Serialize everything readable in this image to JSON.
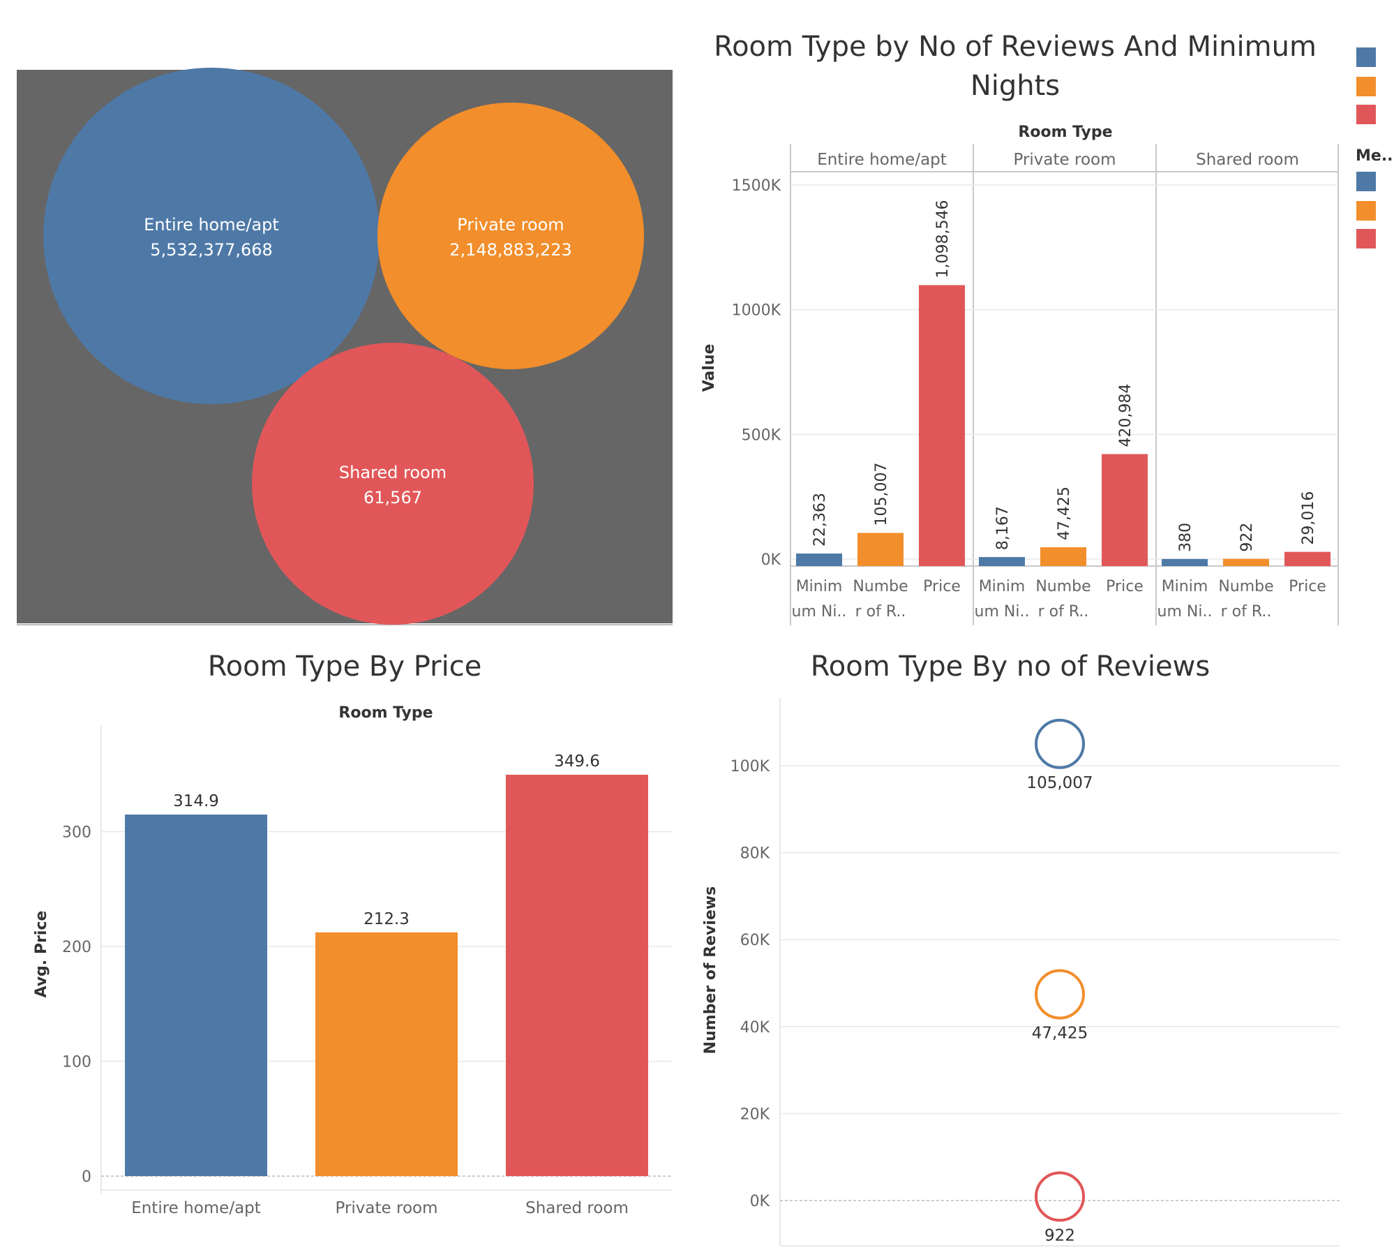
{
  "colors": {
    "entire": "#4e79a7",
    "private": "#f28e2b",
    "shared": "#e15759",
    "bubble_background": "#666666",
    "grid": "#e8e8e8",
    "panel_border": "#c8c8c8"
  },
  "chart_data": [
    {
      "type": "bubble",
      "background": "dark gray",
      "bubbles": [
        {
          "label": "Entire home/apt",
          "value": 5532377668,
          "value_label": "5,532,377,668",
          "color": "#4e79a7"
        },
        {
          "label": "Private room",
          "value": 2148883223,
          "value_label": "2,148,883,223",
          "color": "#f28e2b"
        },
        {
          "label": "Shared room",
          "value": 61567,
          "value_label": "61,567",
          "color": "#e15759"
        }
      ]
    },
    {
      "type": "bar",
      "title_line1": "Room Type by No of Reviews And Minimum",
      "title_line2": "Nights",
      "header_label": "Room Type",
      "ylabel": "Value",
      "ylim": [
        0,
        1500000
      ],
      "yticks": [
        {
          "value": 0,
          "label": "0K"
        },
        {
          "value": 500000,
          "label": "500K"
        },
        {
          "value": 1000000,
          "label": "1000K"
        },
        {
          "value": 1500000,
          "label": "1500K"
        }
      ],
      "measure_legend_title": "Me..",
      "measure_names": [
        {
          "line1": "Minim",
          "line2": "um Ni..",
          "color": "#4e79a7"
        },
        {
          "line1": "Numbe",
          "line2": "r of R..",
          "color": "#f28e2b"
        },
        {
          "line1": "Price",
          "line2": "",
          "color": "#e15759"
        }
      ],
      "panels": [
        {
          "name": "Entire home/apt",
          "values": [
            22363,
            105007,
            1098546
          ],
          "labels": [
            "22,363",
            "105,007",
            "1,098,546"
          ]
        },
        {
          "name": "Private room",
          "values": [
            8167,
            47425,
            420984
          ],
          "labels": [
            "8,167",
            "47,425",
            "420,984"
          ]
        },
        {
          "name": "Shared room",
          "values": [
            380,
            922,
            29016
          ],
          "labels": [
            "380",
            "922",
            "29,016"
          ]
        }
      ]
    },
    {
      "type": "bar",
      "title": "Room Type By Price",
      "header_label": "Room Type",
      "ylabel": "Avg. Price",
      "ylim": [
        0,
        380
      ],
      "yticks": [
        {
          "value": 0,
          "label": "0"
        },
        {
          "value": 100,
          "label": "100"
        },
        {
          "value": 200,
          "label": "200"
        },
        {
          "value": 300,
          "label": "300"
        }
      ],
      "categories": [
        "Entire home/apt",
        "Private room",
        "Shared room"
      ],
      "values": [
        314.9,
        212.3,
        349.6
      ],
      "labels": [
        "314.9",
        "212.3",
        "349.6"
      ],
      "colors": [
        "#4e79a7",
        "#f28e2b",
        "#e15759"
      ]
    },
    {
      "type": "scatter",
      "title": "Room Type By no of Reviews",
      "ylabel": "Number of Reviews",
      "ylim": [
        -10000,
        112000
      ],
      "yticks": [
        {
          "value": 0,
          "label": "0K"
        },
        {
          "value": 20000,
          "label": "20K"
        },
        {
          "value": 40000,
          "label": "40K"
        },
        {
          "value": 60000,
          "label": "60K"
        },
        {
          "value": 80000,
          "label": "80K"
        },
        {
          "value": 100000,
          "label": "100K"
        }
      ],
      "points": [
        {
          "room_type": "Entire home/apt",
          "value": 105007,
          "label": "105,007",
          "color": "#4e79a7"
        },
        {
          "room_type": "Private room",
          "value": 47425,
          "label": "47,425",
          "color": "#f28e2b"
        },
        {
          "room_type": "Shared room",
          "value": 922,
          "label": "922",
          "color": "#e15759"
        }
      ]
    }
  ]
}
